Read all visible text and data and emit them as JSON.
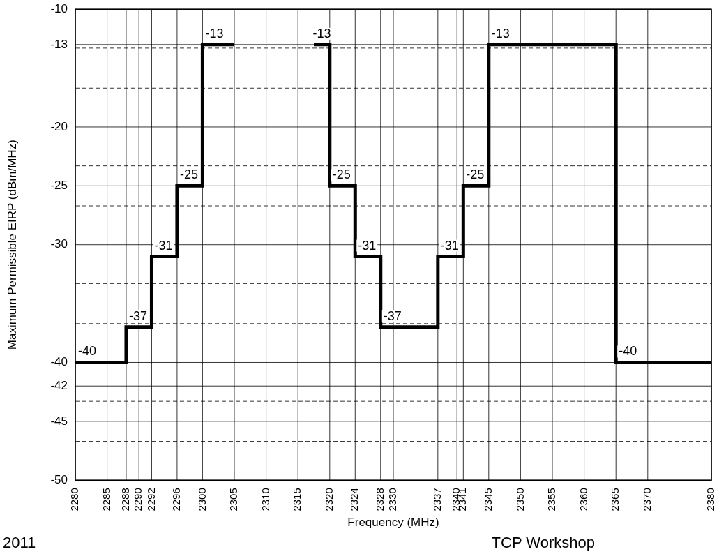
{
  "chart_data": {
    "type": "step",
    "xlabel": "Frequency (MHz)",
    "ylabel": "Maximum Permissible EIRP (dBm/MHz)",
    "series": [
      {
        "color": "#000000",
        "x": [
          2280,
          2288,
          2292,
          2296,
          2300,
          2305
        ],
        "values": [
          -40,
          -37,
          -31,
          -25,
          -13,
          -13
        ],
        "value_labels": [
          "-40",
          "-37",
          "-31",
          "-25",
          "-13",
          null
        ]
      },
      {
        "color": "#000000",
        "x": [
          2317.5,
          2320,
          2324,
          2328,
          2337,
          2341,
          2345,
          2365,
          2380
        ],
        "values": [
          -13,
          -25,
          -31,
          -37,
          -31,
          -25,
          -13,
          -40,
          -40
        ],
        "value_labels": [
          "-13",
          "-25",
          "-31",
          "-37",
          "-31",
          "-25",
          "-13",
          "-40",
          null
        ]
      }
    ],
    "xlim": [
      2280,
      2380
    ],
    "xticks": [
      2280,
      2285,
      2288,
      2290,
      2292,
      2296,
      2300,
      2305,
      2310,
      2315,
      2320,
      2324,
      2328,
      2330,
      2337,
      2340,
      2341,
      2345,
      2350,
      2355,
      2360,
      2365,
      2370,
      2380
    ],
    "ylim": [
      -50,
      -10
    ],
    "yticks": [
      -10,
      -13,
      {
        "value": -13.3,
        "label": null
      },
      {
        "value": -16.7,
        "label": null
      },
      -20,
      {
        "value": -23.3,
        "label": null
      },
      -25,
      {
        "value": -26.7,
        "label": null
      },
      -30,
      {
        "value": -33.3,
        "label": null
      },
      {
        "value": -36.7,
        "label": null
      },
      -40,
      -42,
      {
        "value": -43.3,
        "label": null
      },
      -45,
      {
        "value": -46.7,
        "label": null
      },
      -50
    ],
    "grid": true,
    "legend": false,
    "marker": "none",
    "line_style": "solid",
    "annotations": [
      "2011",
      "TCP Workshop"
    ]
  }
}
